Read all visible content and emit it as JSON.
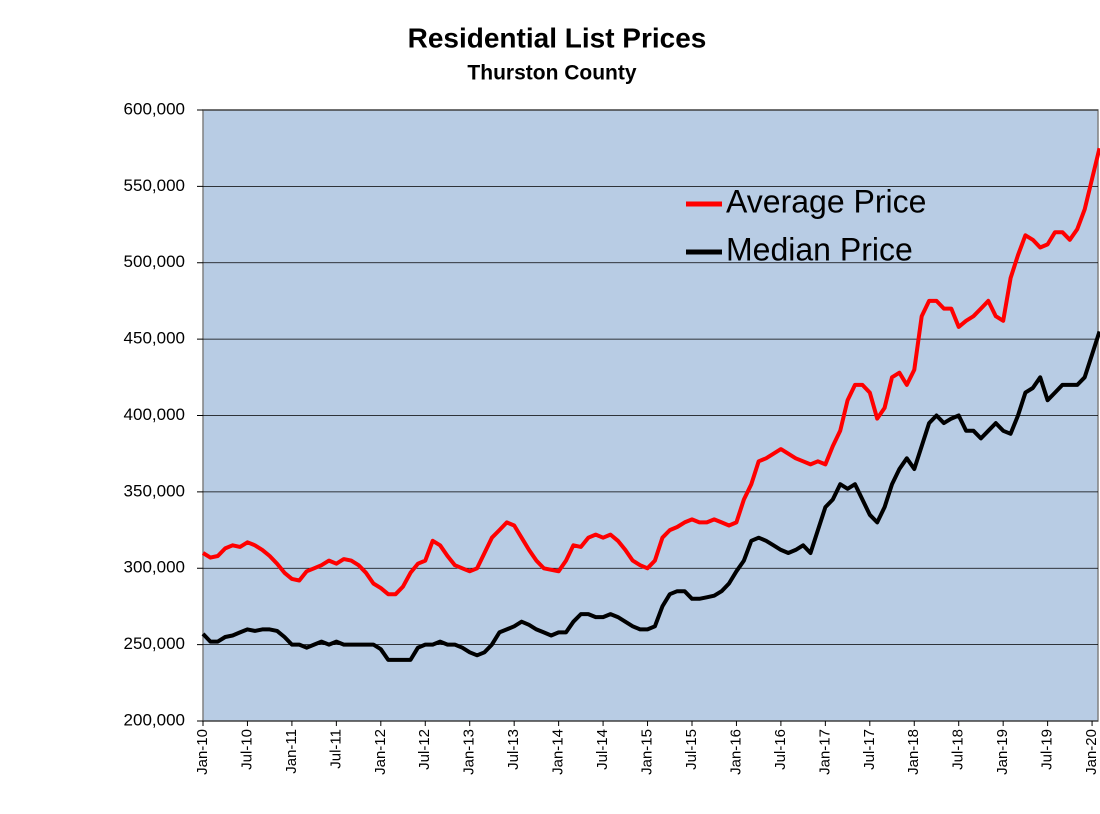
{
  "chart_data": {
    "type": "line",
    "title": "Residential List Prices",
    "subtitle": "Thurston County",
    "categories": [
      "Jan-10",
      null,
      null,
      null,
      null,
      null,
      "Jul-10",
      null,
      null,
      null,
      null,
      null,
      "Jan-11",
      null,
      null,
      null,
      null,
      null,
      "Jul-11",
      null,
      null,
      null,
      null,
      null,
      "Jan-12",
      null,
      null,
      null,
      null,
      null,
      "Jul-12",
      null,
      null,
      null,
      null,
      null,
      "Jan-13",
      null,
      null,
      null,
      null,
      null,
      "Jul-13",
      null,
      null,
      null,
      null,
      null,
      "Jan-14",
      null,
      null,
      null,
      null,
      null,
      "Jul-14",
      null,
      null,
      null,
      null,
      null,
      "Jan-15",
      null,
      null,
      null,
      null,
      null,
      "Jul-15",
      null,
      null,
      null,
      null,
      null,
      "Jan-16",
      null,
      null,
      null,
      null,
      null,
      "Jul-16",
      null,
      null,
      null,
      null,
      null,
      "Jan-17",
      null,
      null,
      null,
      null,
      null,
      "Jul-17",
      null,
      null,
      null,
      null,
      null,
      "Jan-18",
      null,
      null,
      null,
      null,
      null,
      "Jul-18",
      null,
      null,
      null,
      null,
      null,
      "Jan-19",
      null,
      null,
      null,
      null,
      null,
      "Jul-19",
      null,
      null,
      null,
      null,
      null,
      "Jan-20",
      null
    ],
    "series": [
      {
        "name": "Average Price",
        "color": "#ff0000",
        "values": [
          310000,
          307000,
          308000,
          313000,
          315000,
          314000,
          317000,
          315000,
          312000,
          308000,
          303000,
          297000,
          293000,
          292000,
          298000,
          300000,
          302000,
          305000,
          303000,
          306000,
          305000,
          302000,
          297000,
          290000,
          287000,
          283000,
          283000,
          288000,
          297000,
          303000,
          305000,
          318000,
          315000,
          308000,
          302000,
          300000,
          298000,
          300000,
          310000,
          320000,
          325000,
          330000,
          328000,
          320000,
          312000,
          305000,
          300000,
          299000,
          298000,
          305000,
          315000,
          314000,
          320000,
          322000,
          320000,
          322000,
          318000,
          312000,
          305000,
          302000,
          300000,
          305000,
          320000,
          325000,
          327000,
          330000,
          332000,
          330000,
          330000,
          332000,
          330000,
          328000,
          330000,
          345000,
          355000,
          370000,
          372000,
          375000,
          378000,
          375000,
          372000,
          370000,
          368000,
          370000,
          368000,
          380000,
          390000,
          410000,
          420000,
          420000,
          415000,
          398000,
          405000,
          425000,
          428000,
          420000,
          430000,
          465000,
          475000,
          475000,
          470000,
          470000,
          458000,
          462000,
          465000,
          470000,
          475000,
          465000,
          462000,
          490000,
          505000,
          518000,
          515000,
          510000,
          512000,
          520000,
          520000,
          515000,
          522000,
          535000,
          555000,
          575000
        ]
      },
      {
        "name": "Median Price",
        "color": "#000000",
        "values": [
          257000,
          252000,
          252000,
          255000,
          256000,
          258000,
          260000,
          259000,
          260000,
          260000,
          259000,
          255000,
          250000,
          250000,
          248000,
          250000,
          252000,
          250000,
          252000,
          250000,
          250000,
          250000,
          250000,
          250000,
          247000,
          240000,
          240000,
          240000,
          240000,
          248000,
          250000,
          250000,
          252000,
          250000,
          250000,
          248000,
          245000,
          243000,
          245000,
          250000,
          258000,
          260000,
          262000,
          265000,
          263000,
          260000,
          258000,
          256000,
          258000,
          258000,
          265000,
          270000,
          270000,
          268000,
          268000,
          270000,
          268000,
          265000,
          262000,
          260000,
          260000,
          262000,
          275000,
          283000,
          285000,
          285000,
          280000,
          280000,
          281000,
          282000,
          285000,
          290000,
          298000,
          305000,
          318000,
          320000,
          318000,
          315000,
          312000,
          310000,
          312000,
          315000,
          310000,
          325000,
          340000,
          345000,
          355000,
          352000,
          355000,
          345000,
          335000,
          330000,
          340000,
          355000,
          365000,
          372000,
          365000,
          380000,
          395000,
          400000,
          395000,
          398000,
          400000,
          390000,
          390000,
          385000,
          390000,
          395000,
          390000,
          388000,
          400000,
          415000,
          418000,
          425000,
          410000,
          415000,
          420000,
          420000,
          420000,
          425000,
          440000,
          455000
        ]
      }
    ],
    "ylim": [
      200000,
      600000
    ],
    "yticks": [
      {
        "value": 200000,
        "label": "200,000"
      },
      {
        "value": 250000,
        "label": "250,000"
      },
      {
        "value": 300000,
        "label": "300,000"
      },
      {
        "value": 350000,
        "label": "350,000"
      },
      {
        "value": 400000,
        "label": "400,000"
      },
      {
        "value": 450000,
        "label": "450,000"
      },
      {
        "value": 500000,
        "label": "500,000"
      },
      {
        "value": 550000,
        "label": "550,000"
      },
      {
        "value": 600000,
        "label": "600,000"
      }
    ],
    "grid": true,
    "legend": "upper right",
    "plot_background": "#b8cce4"
  }
}
